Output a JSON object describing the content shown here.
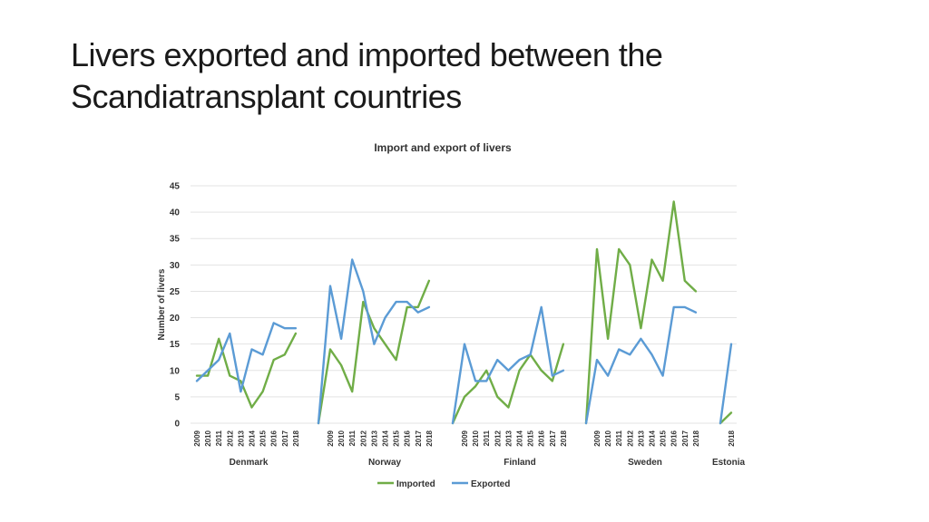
{
  "slide": {
    "title_line1": "Livers exported and imported between the",
    "title_line2": "Scandiatransplant countries"
  },
  "chart_data": {
    "type": "line",
    "title": "Import and export of livers",
    "xlabel": "",
    "ylabel": "Number of livers",
    "ylim": [
      0,
      45
    ],
    "yticks": [
      "0",
      "5",
      "10",
      "15",
      "20",
      "25",
      "30",
      "35",
      "40",
      "45"
    ],
    "grid": true,
    "legend": "bottom-center",
    "groups": [
      {
        "name": "Denmark",
        "years": [
          "2009",
          "2010",
          "2011",
          "2012",
          "2013",
          "2014",
          "2015",
          "2016",
          "2017",
          "2018"
        ]
      },
      {
        "name": "Norway",
        "years": [
          "2009",
          "2010",
          "2011",
          "2012",
          "2013",
          "2014",
          "2015",
          "2016",
          "2017",
          "2018"
        ]
      },
      {
        "name": "Finland",
        "years": [
          "2009",
          "2010",
          "2011",
          "2012",
          "2013",
          "2014",
          "2015",
          "2016",
          "2017",
          "2018"
        ]
      },
      {
        "name": "Sweden",
        "years": [
          "2009",
          "2010",
          "2011",
          "2012",
          "2013",
          "2014",
          "2015",
          "2016",
          "2017",
          "2018"
        ]
      },
      {
        "name": "Estonia",
        "years": [
          "2018"
        ]
      }
    ],
    "series": [
      {
        "name": "Imported",
        "color": "#70ad47",
        "values": [
          [
            9,
            9,
            16,
            9,
            8,
            3,
            6,
            12,
            13,
            17
          ],
          [
            0,
            14,
            11,
            6,
            23,
            18,
            15,
            12,
            22,
            22,
            27
          ],
          [
            0,
            5,
            7,
            10,
            5,
            3,
            10,
            13,
            10,
            8,
            15
          ],
          [
            0,
            33,
            16,
            33,
            30,
            18,
            31,
            27,
            42,
            27,
            25
          ],
          [
            0,
            2
          ]
        ]
      },
      {
        "name": "Exported",
        "color": "#5b9bd5",
        "values": [
          [
            8,
            10,
            12,
            17,
            6,
            14,
            13,
            19,
            18,
            18
          ],
          [
            0,
            26,
            16,
            31,
            25,
            15,
            20,
            23,
            23,
            21,
            22
          ],
          [
            0,
            15,
            8,
            8,
            12,
            10,
            12,
            13,
            22,
            9,
            10
          ],
          [
            0,
            12,
            9,
            14,
            13,
            16,
            13,
            9,
            22,
            22,
            21
          ],
          [
            0,
            15
          ]
        ]
      }
    ]
  }
}
